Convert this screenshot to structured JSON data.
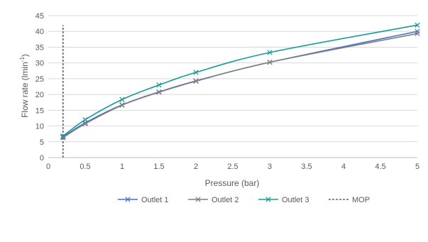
{
  "chart_data": {
    "type": "line",
    "title": "",
    "xlabel": "Pressure (bar)",
    "ylabel_main": "Flow rate (lmin",
    "ylabel_sup": "-1",
    "ylabel_tail": ")",
    "xlim": [
      0,
      5
    ],
    "ylim": [
      0,
      45
    ],
    "xticks": [
      "0",
      "0.5",
      "1",
      "1.5",
      "2",
      "2.5",
      "3",
      "3.5",
      "4",
      "4.5",
      "5"
    ],
    "yticks": [
      "0",
      "5",
      "10",
      "15",
      "20",
      "25",
      "30",
      "35",
      "40",
      "45"
    ],
    "grid": "horizontal",
    "legend_position": "bottom",
    "series": [
      {
        "name": "Outlet 1",
        "color": "#4472C4",
        "marker": "x",
        "x": [
          0.2,
          0.5,
          1,
          1.5,
          2,
          3,
          5
        ],
        "y": [
          6.5,
          11.0,
          16.7,
          20.8,
          24.3,
          30.2,
          40.0
        ]
      },
      {
        "name": "Outlet 2",
        "color": "#7F7F7F",
        "marker": "x",
        "x": [
          0.2,
          0.5,
          1,
          1.5,
          2,
          3,
          5
        ],
        "y": [
          6.3,
          10.7,
          16.6,
          20.7,
          24.2,
          30.2,
          39.3
        ]
      },
      {
        "name": "Outlet 3",
        "color": "#1A9A9A",
        "marker": "x",
        "x": [
          0.2,
          0.5,
          1,
          1.5,
          2,
          3,
          5
        ],
        "y": [
          6.8,
          12.0,
          18.4,
          23.0,
          27.0,
          33.3,
          42.0
        ]
      }
    ],
    "reference_lines": [
      {
        "name": "MOP",
        "x": 0.2,
        "y_from": 0,
        "y_to": 42,
        "color": "#404040",
        "style": "dashed"
      }
    ]
  }
}
